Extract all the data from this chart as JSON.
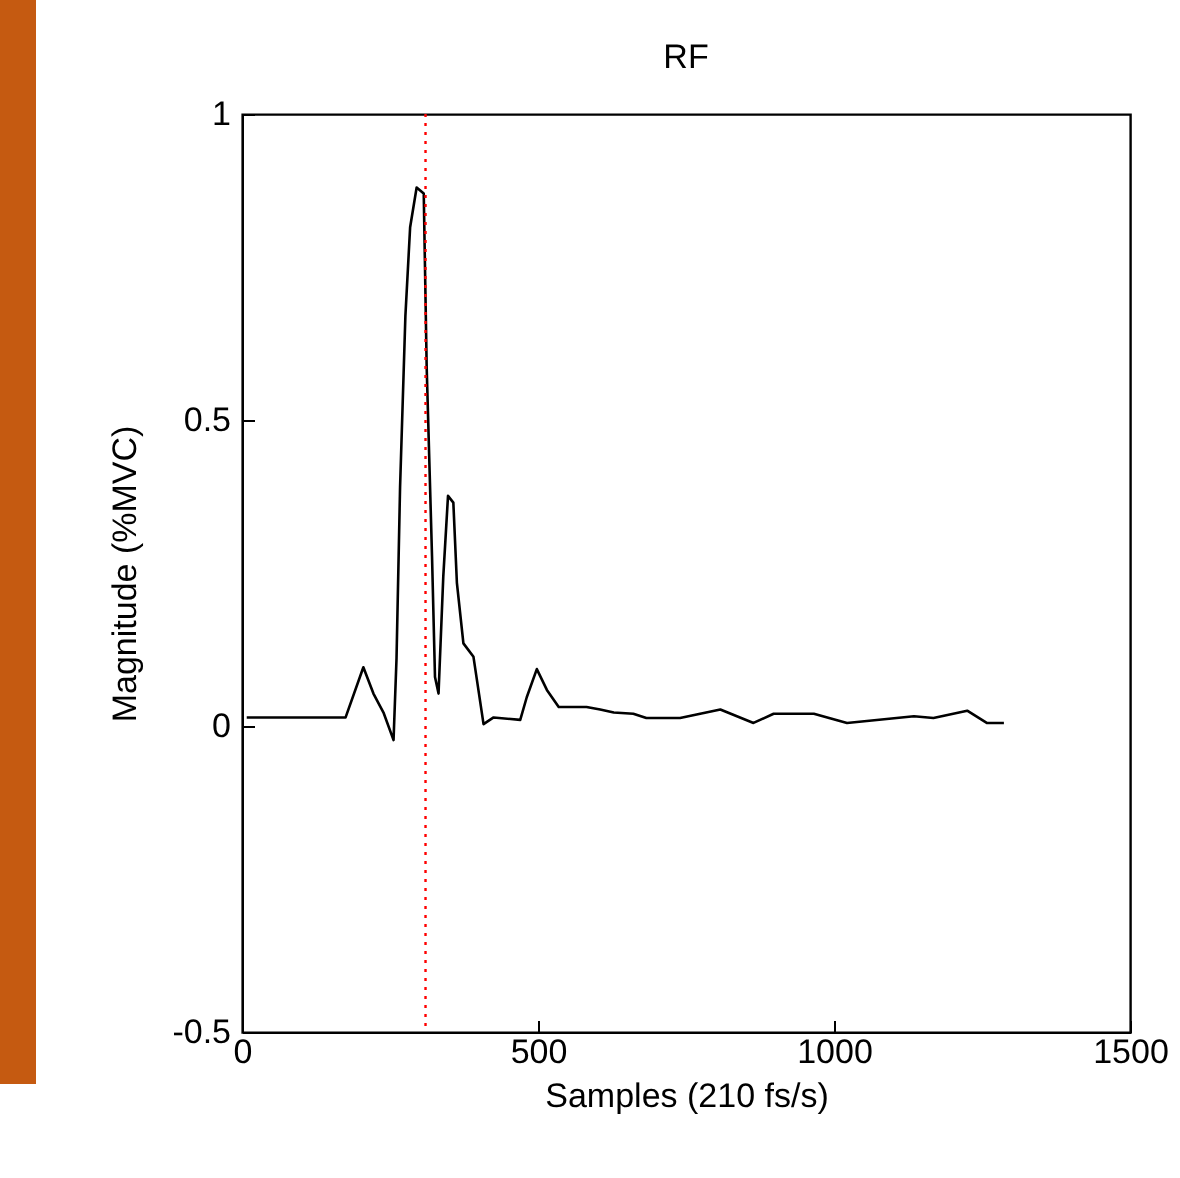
{
  "chart_data": {
    "type": "line",
    "title": "RF",
    "xlabel": "Samples (210 fs/s)",
    "ylabel": "Magnitude (%MVC)",
    "xlim": [
      0,
      1500
    ],
    "xticks": [
      0,
      500,
      1000,
      1500
    ],
    "ylim": [
      -0.5,
      1
    ],
    "yticks": [
      -0.5,
      0,
      0.5,
      1
    ],
    "x": [
      8,
      143,
      175,
      205,
      222,
      239,
      256,
      261,
      267,
      276,
      284,
      295,
      307,
      312,
      321,
      326,
      332,
      340,
      348,
      357,
      363,
      374,
      391,
      408,
      425,
      470,
      481,
      498,
      515,
      535,
      582,
      605,
      628,
      661,
      683,
      740,
      808,
      864,
      898,
      966,
      1022,
      1135,
      1168,
      1225,
      1258,
      1287
    ],
    "series": [
      {
        "color": "#000000",
        "values": [
          0.014,
          0.014,
          0.014,
          0.096,
          0.053,
          0.022,
          -0.023,
          0.11,
          0.39,
          0.67,
          0.815,
          0.88,
          0.87,
          0.585,
          0.277,
          0.08,
          0.053,
          0.244,
          0.376,
          0.365,
          0.234,
          0.135,
          0.113,
          0.003,
          0.014,
          0.01,
          0.047,
          0.093,
          0.059,
          0.031,
          0.031,
          0.027,
          0.022,
          0.02,
          0.013,
          0.013,
          0.027,
          0.005,
          0.02,
          0.02,
          0.005,
          0.016,
          0.013,
          0.025,
          0.005,
          0.005
        ]
      }
    ],
    "ref_lines": [
      {
        "axis": "x",
        "value": 310,
        "color": "#ff0000",
        "line_style": "dotted"
      }
    ]
  }
}
